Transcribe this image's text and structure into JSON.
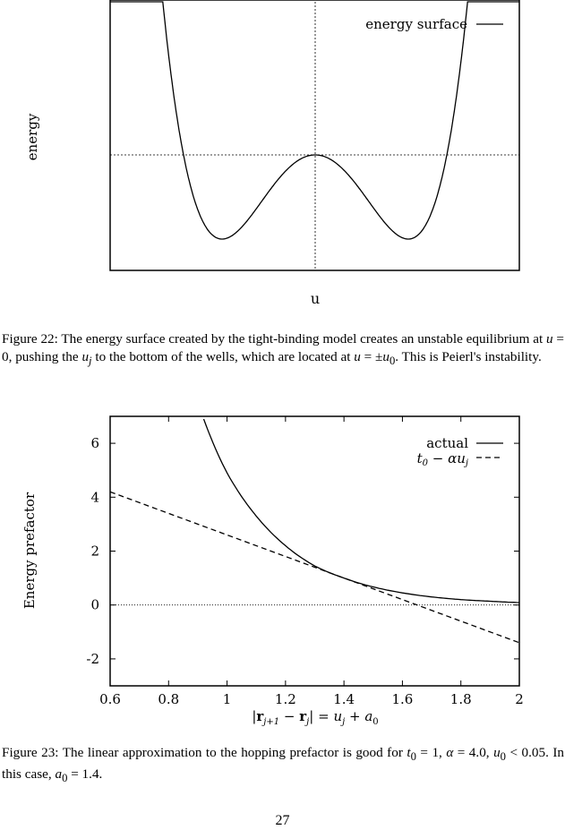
{
  "figure22": {
    "caption_label": "Figure 22:",
    "caption_text": "The energy surface created by the tight-binding model creates an unstable equilibrium at u = 0, pushing the u_j to the bottom of the wells, which are located at u = ±u_0. This is Peierl's instability.",
    "chart_data": {
      "type": "line",
      "xlabel": "u",
      "ylabel": "energy",
      "series": [
        {
          "name": "energy surface",
          "style": "solid",
          "function": "double-well"
        }
      ],
      "reference_lines": [
        "vertical dotted line at u = 0",
        "horizontal dotted line at energy of the central maximum"
      ],
      "ticks": "none",
      "legend_position": "top-right"
    }
  },
  "figure23": {
    "caption_label": "Figure 23:",
    "caption_text": "The linear approximation to the hopping prefactor is good for t_0 = 1, α = 4.0, u_0 < 0.05. In this case, a_0 = 1.4.",
    "chart_data": {
      "type": "line",
      "xlabel": "|r_{j+1} − r_j| = u_j + a_0",
      "ylabel": "Energy prefactor",
      "xlim": [
        0.6,
        2.0
      ],
      "ylim": [
        -3,
        7
      ],
      "x_ticks": [
        "0.6",
        "0.8",
        "1",
        "1.2",
        "1.4",
        "1.6",
        "1.8",
        "2"
      ],
      "y_ticks": [
        "-2",
        "0",
        "2",
        "4",
        "6"
      ],
      "legend_position": "top-right",
      "series": [
        {
          "name": "actual",
          "style": "solid",
          "x": [
            0.92,
            1.0,
            1.1,
            1.2,
            1.3,
            1.35,
            1.4,
            1.5,
            1.6,
            1.7,
            1.8,
            1.9,
            2.0
          ],
          "y": [
            6.9,
            4.9,
            3.3,
            2.2,
            1.45,
            1.2,
            1.0,
            0.67,
            0.45,
            0.3,
            0.2,
            0.14,
            0.09
          ]
        },
        {
          "name": "t_0 − αu_j",
          "style": "dashed",
          "x": [
            0.6,
            2.0
          ],
          "y": [
            4.2,
            -1.4
          ]
        }
      ],
      "reference_lines": [
        "horizontal dotted line at y = 0"
      ]
    }
  },
  "page_number": "27"
}
